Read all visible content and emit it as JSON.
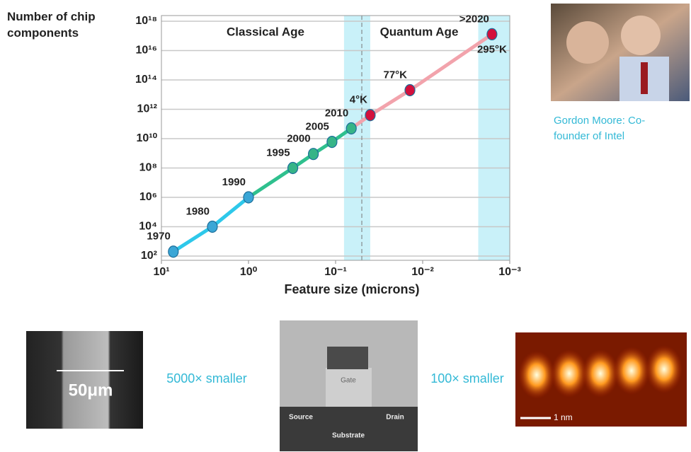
{
  "chart_data": {
    "type": "line",
    "y_label": "Number of chip components",
    "x_label": "Feature size (microns)",
    "x_log": true,
    "y_log": true,
    "xlim": [
      10,
      0.001
    ],
    "ylim": [
      100,
      1e+18
    ],
    "xticks": [
      {
        "value": 10,
        "label": "10¹"
      },
      {
        "value": 1,
        "label": "10⁰"
      },
      {
        "value": 0.1,
        "label": "10⁻¹"
      },
      {
        "value": 0.01,
        "label": "10⁻²"
      },
      {
        "value": 0.001,
        "label": "10⁻³"
      }
    ],
    "yticks": [
      {
        "value": 100,
        "label": "10²"
      },
      {
        "value": 10000,
        "label": "10⁴"
      },
      {
        "value": 1000000,
        "label": "10⁶"
      },
      {
        "value": 100000000,
        "label": "10⁸"
      },
      {
        "value": 10000000000,
        "label": "10¹⁰"
      },
      {
        "value": 1000000000000,
        "label": "10¹²"
      },
      {
        "value": 100000000000000,
        "label": "10¹⁴"
      },
      {
        "value": 10000000000000000,
        "label": "10¹⁶"
      },
      {
        "value": 1e+18,
        "label": "10¹⁸"
      }
    ],
    "grid": true,
    "regions": [
      "Classical Age",
      "Quantum Age"
    ],
    "bands": [
      [
        0.08,
        0.04
      ],
      [
        0.0023,
        0.001
      ]
    ],
    "band_color": "#c9f1f9",
    "divider": 0.05,
    "series": [
      {
        "color": "#2ec8ea",
        "point_color": "#3aa6d6",
        "x": [
          7.3,
          2.6,
          1
        ],
        "values": [
          200,
          10000,
          1000000
        ],
        "labels": [
          "1970",
          "1980",
          "1990"
        ]
      },
      {
        "color": "#2fc08e",
        "point_color": "#36b487",
        "x": [
          0.31,
          0.18,
          0.11,
          0.066
        ],
        "values": [
          100000000,
          900000000,
          6000000000,
          50000000000
        ],
        "labels": [
          "1995",
          "2000",
          "2005",
          "2010"
        ]
      },
      {
        "color": "#f2a3ac",
        "point_color": "#d3103c",
        "x": [
          0.04,
          0.014,
          0.0016
        ],
        "values": [
          400000000000,
          20000000000000,
          130000000000000000
        ],
        "labels": [
          "4°K",
          "77°K",
          ">2020"
        ]
      }
    ],
    "annotations": [
      "295°K"
    ]
  },
  "photo_caption": "Gordon Moore: Co-founder of Intel",
  "images": {
    "sem_scale": "50μm",
    "caption_1": "5000× smaller",
    "gate": "Gate",
    "source": "Source",
    "drain": "Drain",
    "substrate": "Substrate",
    "caption_2": "100× smaller",
    "stm_scale": "1 nm"
  }
}
